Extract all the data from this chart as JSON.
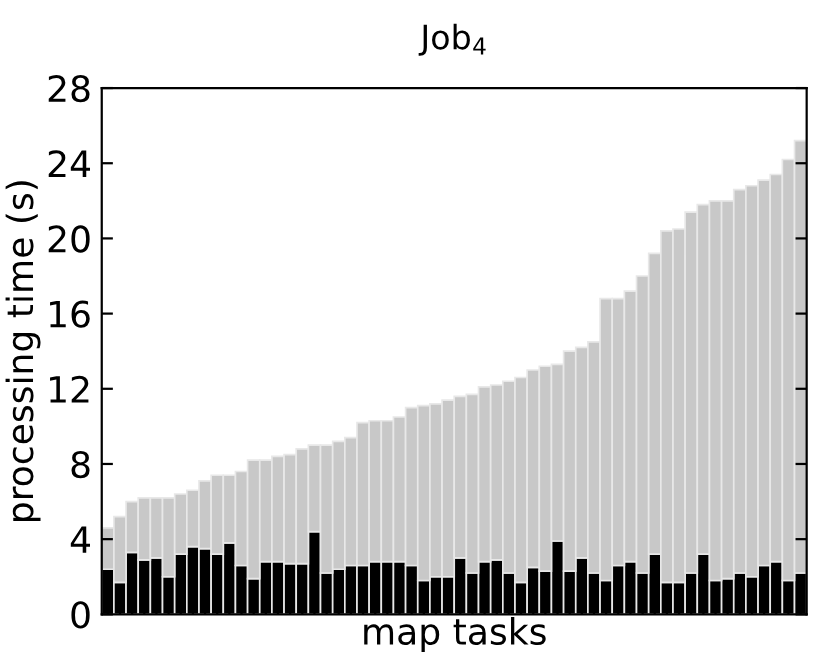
{
  "chart_data": {
    "type": "bar",
    "title": "Job$_{4}$",
    "xlabel": "map tasks",
    "ylabel": "processing time (s)",
    "categories": [
      null,
      null,
      null,
      null,
      null,
      null,
      null,
      null,
      null,
      null,
      null,
      null,
      null,
      null,
      null,
      null,
      null,
      null,
      null,
      null,
      null,
      null,
      null,
      null,
      null,
      null,
      null,
      null,
      null,
      null,
      null,
      null,
      null,
      null,
      null,
      null,
      null,
      null,
      null,
      null,
      null,
      null,
      null,
      null,
      null,
      null,
      null,
      null,
      null,
      null,
      null,
      null,
      null,
      null,
      null,
      null,
      null,
      null
    ],
    "series": [
      {
        "color": "#000000",
        "values": [
          2.4,
          1.7,
          3.3,
          2.9,
          3.0,
          2.0,
          3.2,
          3.6,
          3.5,
          3.2,
          3.8,
          2.6,
          1.9,
          2.8,
          2.8,
          2.7,
          2.7,
          4.4,
          2.2,
          2.4,
          2.6,
          2.6,
          2.8,
          2.8,
          2.8,
          2.6,
          1.8,
          2.0,
          2.0,
          3.0,
          2.2,
          2.8,
          2.9,
          2.2,
          1.7,
          2.5,
          2.3,
          3.9,
          2.3,
          3.0,
          2.2,
          1.8,
          2.6,
          2.8,
          2.2,
          3.2,
          1.7,
          1.7,
          2.2,
          3.2,
          1.8,
          1.9,
          2.2,
          2.0,
          2.6,
          2.8,
          1.8,
          2.2
        ]
      },
      {
        "color": "#c8c8c8",
        "values": [
          2.2,
          3.5,
          2.7,
          3.3,
          3.2,
          4.2,
          3.2,
          3.0,
          3.6,
          4.2,
          3.6,
          5.0,
          6.3,
          5.4,
          5.6,
          5.8,
          6.1,
          4.6,
          6.8,
          6.8,
          6.8,
          7.6,
          7.5,
          7.5,
          7.7,
          8.4,
          9.3,
          9.2,
          9.4,
          8.6,
          9.5,
          9.3,
          9.3,
          10.2,
          10.9,
          10.5,
          10.9,
          9.4,
          11.7,
          11.2,
          12.3,
          15.0,
          14.2,
          14.4,
          15.8,
          16.0,
          18.7,
          18.8,
          19.2,
          18.6,
          20.2,
          20.1,
          20.4,
          20.8,
          20.5,
          20.6,
          22.4,
          23.0
        ]
      }
    ],
    "stacked": true,
    "ylim": [
      0,
      28
    ],
    "yticks": [
      0,
      4,
      8,
      12,
      16,
      20,
      24,
      28
    ],
    "tick_labels": "y"
  }
}
